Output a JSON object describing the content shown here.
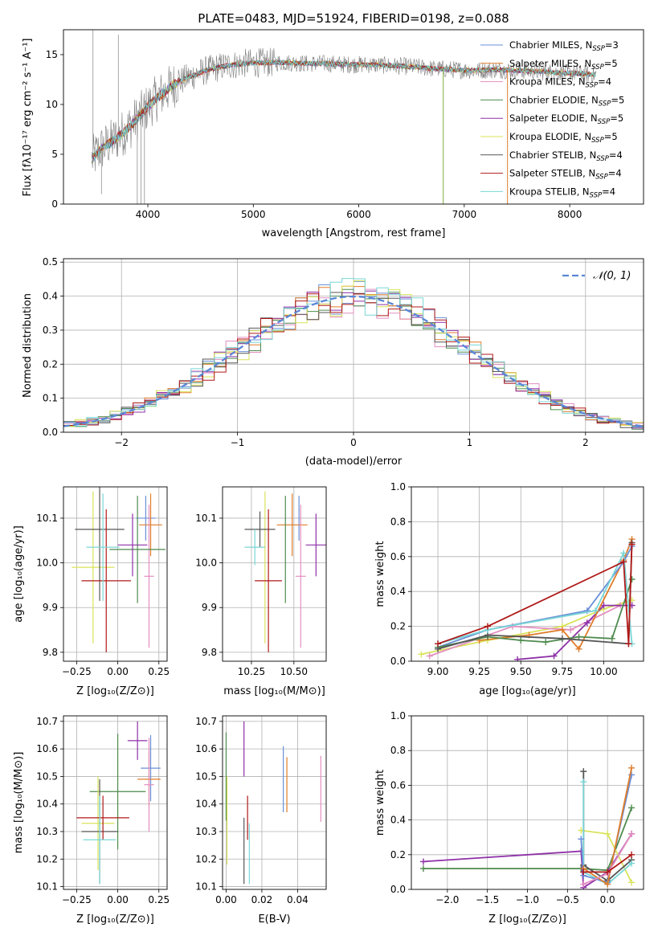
{
  "title": "PLATE=0483, MJD=51924, FIBERID=0198, z=0.088",
  "colors": {
    "Chabrier MILES": "#6a8fd8",
    "Salpeter MILES": "#e07c2a",
    "Kroupa MILES": "#e38fc0",
    "Chabrier ELODIE": "#4e8a4e",
    "Salpeter ELODIE": "#8e30a8",
    "Kroupa ELODIE": "#d9e35a",
    "Chabrier STELIB": "#555555",
    "Salpeter STELIB": "#b01818",
    "Kroupa STELIB": "#79d6d6"
  },
  "chart_data": [
    {
      "id": "spectrum",
      "type": "line",
      "title": "PLATE=0483, MJD=51924, FIBERID=0198, z=0.088",
      "xlabel": "wavelength [Angstrom, rest frame]",
      "ylabel": "Flux [fλ10⁻¹⁷ erg cm⁻² s⁻¹ A⁻¹]",
      "xlim": [
        3200,
        8700
      ],
      "ylim": [
        0,
        17.5
      ],
      "xticks": [
        4000,
        5000,
        6000,
        7000,
        8000
      ],
      "yticks": [
        0,
        5,
        10,
        15
      ],
      "grid": false,
      "legend_position": "upper-right",
      "data_color": "#808080",
      "spectrum_points": [
        [
          3470,
          4.5
        ],
        [
          3550,
          5.5
        ],
        [
          3650,
          6.2
        ],
        [
          3750,
          7.0
        ],
        [
          3850,
          8.0
        ],
        [
          3950,
          9.2
        ],
        [
          4050,
          10.3
        ],
        [
          4150,
          11.2
        ],
        [
          4250,
          12.0
        ],
        [
          4400,
          12.8
        ],
        [
          4550,
          13.4
        ],
        [
          4700,
          13.8
        ],
        [
          4900,
          14.1
        ],
        [
          5100,
          14.2
        ],
        [
          5300,
          14.2
        ],
        [
          5500,
          14.1
        ],
        [
          5700,
          14.1
        ],
        [
          5900,
          14.0
        ],
        [
          6100,
          14.0
        ],
        [
          6300,
          13.9
        ],
        [
          6500,
          13.8
        ],
        [
          6700,
          13.6
        ],
        [
          6900,
          13.5
        ],
        [
          7100,
          13.4
        ],
        [
          7300,
          13.5
        ],
        [
          7500,
          13.4
        ],
        [
          7700,
          13.3
        ],
        [
          7900,
          13.2
        ],
        [
          8100,
          13.1
        ],
        [
          8250,
          13.0
        ]
      ],
      "legend": [
        {
          "main": "Chabrier MILES, N",
          "sub": "SSP",
          "tail": "=3"
        },
        {
          "main": "Salpeter MILES, N",
          "sub": "SSP",
          "tail": "=5"
        },
        {
          "main": "Kroupa MILES, N",
          "sub": "SSP",
          "tail": "=4"
        },
        {
          "main": "Chabrier ELODIE, N",
          "sub": "SSP",
          "tail": "=5"
        },
        {
          "main": "Salpeter ELODIE, N",
          "sub": "SSP",
          "tail": "=5"
        },
        {
          "main": "Kroupa ELODIE, N",
          "sub": "SSP",
          "tail": "=5"
        },
        {
          "main": "Chabrier STELIB, N",
          "sub": "SSP",
          "tail": "=4"
        },
        {
          "main": "Salpeter STELIB, N",
          "sub": "SSP",
          "tail": "=4"
        },
        {
          "main": "Kroupa STELIB, N",
          "sub": "SSP",
          "tail": "=4"
        }
      ]
    },
    {
      "id": "residuals",
      "type": "bar",
      "xlabel": "(data-model)/error",
      "ylabel": "Normed distribution",
      "xlim": [
        -2.5,
        2.5
      ],
      "ylim": [
        0,
        0.51
      ],
      "xticks": [
        -2,
        -1,
        0,
        1,
        2
      ],
      "yticks": [
        0.0,
        0.1,
        0.2,
        0.3,
        0.4,
        0.5
      ],
      "grid": true,
      "bin_width": 0.1,
      "legend_position": "upper-right",
      "legend_label": "𝒩(0, 1)",
      "gaussian_color": "#5a86d6"
    },
    {
      "id": "age-vs-Z",
      "type": "scatter",
      "xlabel": "Z [log₁₀(Z/Z⊙)]",
      "ylabel": "age  [log₁₀(age/yr)]",
      "xlim": [
        -0.33,
        0.3
      ],
      "ylim": [
        9.78,
        10.17
      ],
      "xticks": [
        -0.25,
        0.0,
        0.25
      ],
      "yticks": [
        9.8,
        9.9,
        10.0,
        10.1
      ],
      "grid": true,
      "points": [
        {
          "s": "Chabrier MILES",
          "x": 0.17,
          "y": 10.1,
          "xe": 0.06,
          "ye": 0.05
        },
        {
          "s": "Salpeter MILES",
          "x": 0.2,
          "y": 10.085,
          "xe": 0.07,
          "ye": 0.07
        },
        {
          "s": "Kroupa MILES",
          "x": 0.19,
          "y": 9.97,
          "xe": 0.03,
          "ye": 0.16
        },
        {
          "s": "Chabrier ELODIE",
          "x": 0.12,
          "y": 10.03,
          "xe": 0.17,
          "ye": 0.12
        },
        {
          "s": "Salpeter ELODIE",
          "x": 0.09,
          "y": 10.04,
          "xe": 0.09,
          "ye": 0.07
        },
        {
          "s": "Kroupa ELODIE",
          "x": -0.15,
          "y": 9.99,
          "xe": 0.13,
          "ye": 0.17
        },
        {
          "s": "Chabrier STELIB",
          "x": -0.11,
          "y": 10.075,
          "xe": 0.15,
          "ye": 0.16
        },
        {
          "s": "Salpeter STELIB",
          "x": -0.07,
          "y": 9.96,
          "xe": 0.15,
          "ye": 0.16
        },
        {
          "s": "Kroupa STELIB",
          "x": -0.09,
          "y": 10.035,
          "xe": 0.1,
          "ye": 0.12
        }
      ]
    },
    {
      "id": "age-vs-mass",
      "type": "scatter",
      "xlabel": "mass [log₁₀(M/M⊙)]",
      "ylabel": "",
      "xlim": [
        10.08,
        10.69
      ],
      "ylim": [
        9.78,
        10.17
      ],
      "xticks": [
        10.25,
        10.5
      ],
      "yticks": [
        9.8,
        9.9,
        10.0,
        10.1
      ],
      "grid": true,
      "points": [
        {
          "s": "Chabrier MILES",
          "x": 10.53,
          "y": 10.1,
          "xe": 0.0,
          "ye": 0.05
        },
        {
          "s": "Salpeter MILES",
          "x": 10.49,
          "y": 10.085,
          "xe": 0.09,
          "ye": 0.07
        },
        {
          "s": "Kroupa MILES",
          "x": 10.54,
          "y": 9.97,
          "xe": 0.03,
          "ye": 0.16
        },
        {
          "s": "Chabrier ELODIE",
          "x": 10.45,
          "y": 10.03,
          "xe": 0.0,
          "ye": 0.12
        },
        {
          "s": "Salpeter ELODIE",
          "x": 10.63,
          "y": 10.04,
          "xe": 0.06,
          "ye": 0.07
        },
        {
          "s": "Kroupa ELODIE",
          "x": 10.33,
          "y": 9.99,
          "xe": 0.0,
          "ye": 0.17
        },
        {
          "s": "Chabrier STELIB",
          "x": 10.3,
          "y": 10.075,
          "xe": 0.09,
          "ye": 0.04
        },
        {
          "s": "Salpeter STELIB",
          "x": 10.35,
          "y": 9.96,
          "xe": 0.08,
          "ye": 0.16
        },
        {
          "s": "Kroupa STELIB",
          "x": 10.27,
          "y": 10.035,
          "xe": 0.06,
          "ye": 0.04
        }
      ]
    },
    {
      "id": "mass-weight-vs-age",
      "type": "line",
      "xlabel": "age  [log₁₀(age/yr)]",
      "ylabel": "mass weight",
      "xlim": [
        8.84,
        10.24
      ],
      "ylim": [
        0,
        1.0
      ],
      "xticks": [
        9.0,
        9.25,
        9.5,
        9.75,
        10.0
      ],
      "yticks": [
        0.0,
        0.2,
        0.4,
        0.6,
        0.8,
        1.0
      ],
      "grid": true,
      "series": [
        {
          "s": "Kroupa ELODIE",
          "x": [
            8.9,
            9.3,
            9.75,
            10.0,
            10.17
          ],
          "y": [
            0.04,
            0.12,
            0.2,
            0.3,
            0.35
          ]
        },
        {
          "s": "Kroupa MILES",
          "x": [
            8.95,
            9.45,
            9.8,
            10.1,
            10.17
          ],
          "y": [
            0.03,
            0.2,
            0.18,
            0.32,
            0.32
          ]
        },
        {
          "s": "Salpeter ELODIE",
          "x": [
            9.48,
            9.7,
            9.9,
            10.0,
            10.17
          ],
          "y": [
            0.01,
            0.03,
            0.22,
            0.32,
            0.32
          ]
        },
        {
          "s": "Salpeter MILES",
          "x": [
            9.25,
            9.55,
            9.75,
            9.85,
            10.12,
            10.17
          ],
          "y": [
            0.12,
            0.15,
            0.18,
            0.07,
            0.58,
            0.7
          ]
        },
        {
          "s": "Chabrier MILES",
          "x": [
            9.0,
            9.3,
            9.9,
            10.12,
            10.17
          ],
          "y": [
            0.08,
            0.18,
            0.29,
            0.57,
            0.66
          ]
        },
        {
          "s": "Chabrier ELODIE",
          "x": [
            9.0,
            9.3,
            9.5,
            9.65,
            9.85,
            10.05,
            10.17
          ],
          "y": [
            0.08,
            0.14,
            0.12,
            0.11,
            0.14,
            0.13,
            0.47
          ]
        },
        {
          "s": "Chabrier STELIB",
          "x": [
            9.0,
            9.3,
            9.75,
            10.15,
            10.17
          ],
          "y": [
            0.07,
            0.15,
            0.13,
            0.1,
            0.68
          ]
        },
        {
          "s": "Kroupa STELIB",
          "x": [
            9.0,
            9.3,
            9.95,
            10.12,
            10.17
          ],
          "y": [
            0.1,
            0.18,
            0.29,
            0.62,
            0.1
          ]
        },
        {
          "s": "Salpeter STELIB",
          "x": [
            9.0,
            9.3,
            10.12,
            10.15,
            10.17
          ],
          "y": [
            0.1,
            0.2,
            0.57,
            0.1,
            0.67
          ]
        }
      ]
    },
    {
      "id": "mass-vs-Z",
      "type": "scatter",
      "xlabel": "Z [log₁₀(Z/Z⊙)]",
      "ylabel": "mass [log₁₀(M/M⊙)]",
      "xlim": [
        -0.33,
        0.3
      ],
      "ylim": [
        10.09,
        10.72
      ],
      "xticks": [
        -0.25,
        0.0,
        0.25
      ],
      "yticks": [
        10.1,
        10.2,
        10.3,
        10.4,
        10.5,
        10.6,
        10.7
      ],
      "grid": true,
      "points": [
        {
          "s": "Chabrier MILES",
          "x": 0.2,
          "y": 10.53,
          "xe": 0.06,
          "ye": 0.12
        },
        {
          "s": "Salpeter MILES",
          "x": 0.19,
          "y": 10.49,
          "xe": 0.07,
          "ye": 0.1
        },
        {
          "s": "Kroupa MILES",
          "x": 0.19,
          "y": 10.47,
          "xe": 0.03,
          "ye": 0.17
        },
        {
          "s": "Chabrier ELODIE",
          "x": 0.0,
          "y": 10.445,
          "xe": 0.17,
          "ye": 0.21
        },
        {
          "s": "Salpeter ELODIE",
          "x": 0.12,
          "y": 10.63,
          "xe": 0.06,
          "ye": 0.07
        },
        {
          "s": "Kroupa ELODIE",
          "x": -0.12,
          "y": 10.33,
          "xe": 0.1,
          "ye": 0.17
        },
        {
          "s": "Chabrier STELIB",
          "x": -0.11,
          "y": 10.3,
          "xe": 0.11,
          "ye": 0.19
        },
        {
          "s": "Salpeter STELIB",
          "x": -0.09,
          "y": 10.35,
          "xe": 0.16,
          "ye": 0.08
        },
        {
          "s": "Kroupa STELIB",
          "x": -0.11,
          "y": 10.27,
          "xe": 0.1,
          "ye": 0.16
        }
      ]
    },
    {
      "id": "mass-vs-EBV",
      "type": "scatter",
      "xlabel": "E(B-V)",
      "ylabel": "",
      "xlim": [
        -0.002,
        0.056
      ],
      "ylim": [
        10.09,
        10.72
      ],
      "xticks": [
        0.0,
        0.02,
        0.04
      ],
      "yticks": [
        10.1,
        10.2,
        10.3,
        10.4,
        10.5,
        10.6,
        10.7
      ],
      "grid": true,
      "points": [
        {
          "s": "Chabrier MILES",
          "x": 0.032,
          "y": 10.49,
          "xe": 0,
          "ye": 0.12
        },
        {
          "s": "Salpeter MILES",
          "x": 0.034,
          "y": 10.47,
          "xe": 0,
          "ye": 0.1
        },
        {
          "s": "Kroupa MILES",
          "x": 0.053,
          "y": 10.455,
          "xe": 0,
          "ye": 0.12
        },
        {
          "s": "Chabrier ELODIE",
          "x": 0.0,
          "y": 10.5,
          "xe": 0,
          "ye": 0.16
        },
        {
          "s": "Salpeter ELODIE",
          "x": 0.01,
          "y": 10.6,
          "xe": 0,
          "ye": 0.1
        },
        {
          "s": "Kroupa ELODIE",
          "x": 0.0005,
          "y": 10.34,
          "xe": 0,
          "ye": 0.16
        },
        {
          "s": "Chabrier STELIB",
          "x": 0.01,
          "y": 10.23,
          "xe": 0,
          "ye": 0.12
        },
        {
          "s": "Salpeter STELIB",
          "x": 0.012,
          "y": 10.35,
          "xe": 0,
          "ye": 0.08
        },
        {
          "s": "Kroupa STELIB",
          "x": 0.013,
          "y": 10.22,
          "xe": 0,
          "ye": 0.11
        }
      ]
    },
    {
      "id": "mass-weight-vs-Z",
      "type": "line",
      "xlabel": "Z [log₁₀(Z/Z⊙)]",
      "ylabel": "mass weight",
      "xlim": [
        -2.45,
        0.45
      ],
      "ylim": [
        0,
        1.0
      ],
      "xticks": [
        -2.0,
        -1.5,
        -1.0,
        -0.5,
        0.0
      ],
      "yticks": [
        0.0,
        0.2,
        0.4,
        0.6,
        0.8,
        1.0
      ],
      "grid": true,
      "series": [
        {
          "s": "Chabrier ELODIE",
          "x": [
            -2.3,
            -0.33,
            0.0,
            0.3
          ],
          "y": [
            0.12,
            0.12,
            0.11,
            0.47
          ]
        },
        {
          "s": "Salpeter ELODIE",
          "x": [
            -2.3,
            -0.33,
            -0.3,
            0.0,
            0.3
          ],
          "y": [
            0.16,
            0.22,
            0.01,
            0.1,
            0.32
          ]
        },
        {
          "s": "Kroupa ELODIE",
          "x": [
            -0.33,
            0.0,
            0.3
          ],
          "y": [
            0.34,
            0.32,
            0.04
          ]
        },
        {
          "s": "Chabrier STELIB",
          "x": [
            -0.3,
            -0.3,
            0.0,
            0.3
          ],
          "y": [
            0.68,
            0.14,
            0.05,
            0.17
          ]
        },
        {
          "s": "Kroupa STELIB",
          "x": [
            -0.3,
            -0.3,
            0.0,
            0.3
          ],
          "y": [
            0.62,
            0.1,
            0.03,
            0.15
          ]
        },
        {
          "s": "Chabrier MILES",
          "x": [
            -0.33,
            -0.3,
            0.0,
            0.3
          ],
          "y": [
            0.29,
            0.08,
            0.04,
            0.66
          ]
        },
        {
          "s": "Salpeter MILES",
          "x": [
            -0.3,
            0.0,
            0.3
          ],
          "y": [
            0.12,
            0.03,
            0.7
          ]
        },
        {
          "s": "Kroupa MILES",
          "x": [
            -0.3,
            0.0,
            0.3
          ],
          "y": [
            0.03,
            0.09,
            0.32
          ]
        },
        {
          "s": "Salpeter STELIB",
          "x": [
            -0.3,
            0.0,
            0.3
          ],
          "y": [
            0.1,
            0.1,
            0.2
          ]
        }
      ]
    }
  ]
}
